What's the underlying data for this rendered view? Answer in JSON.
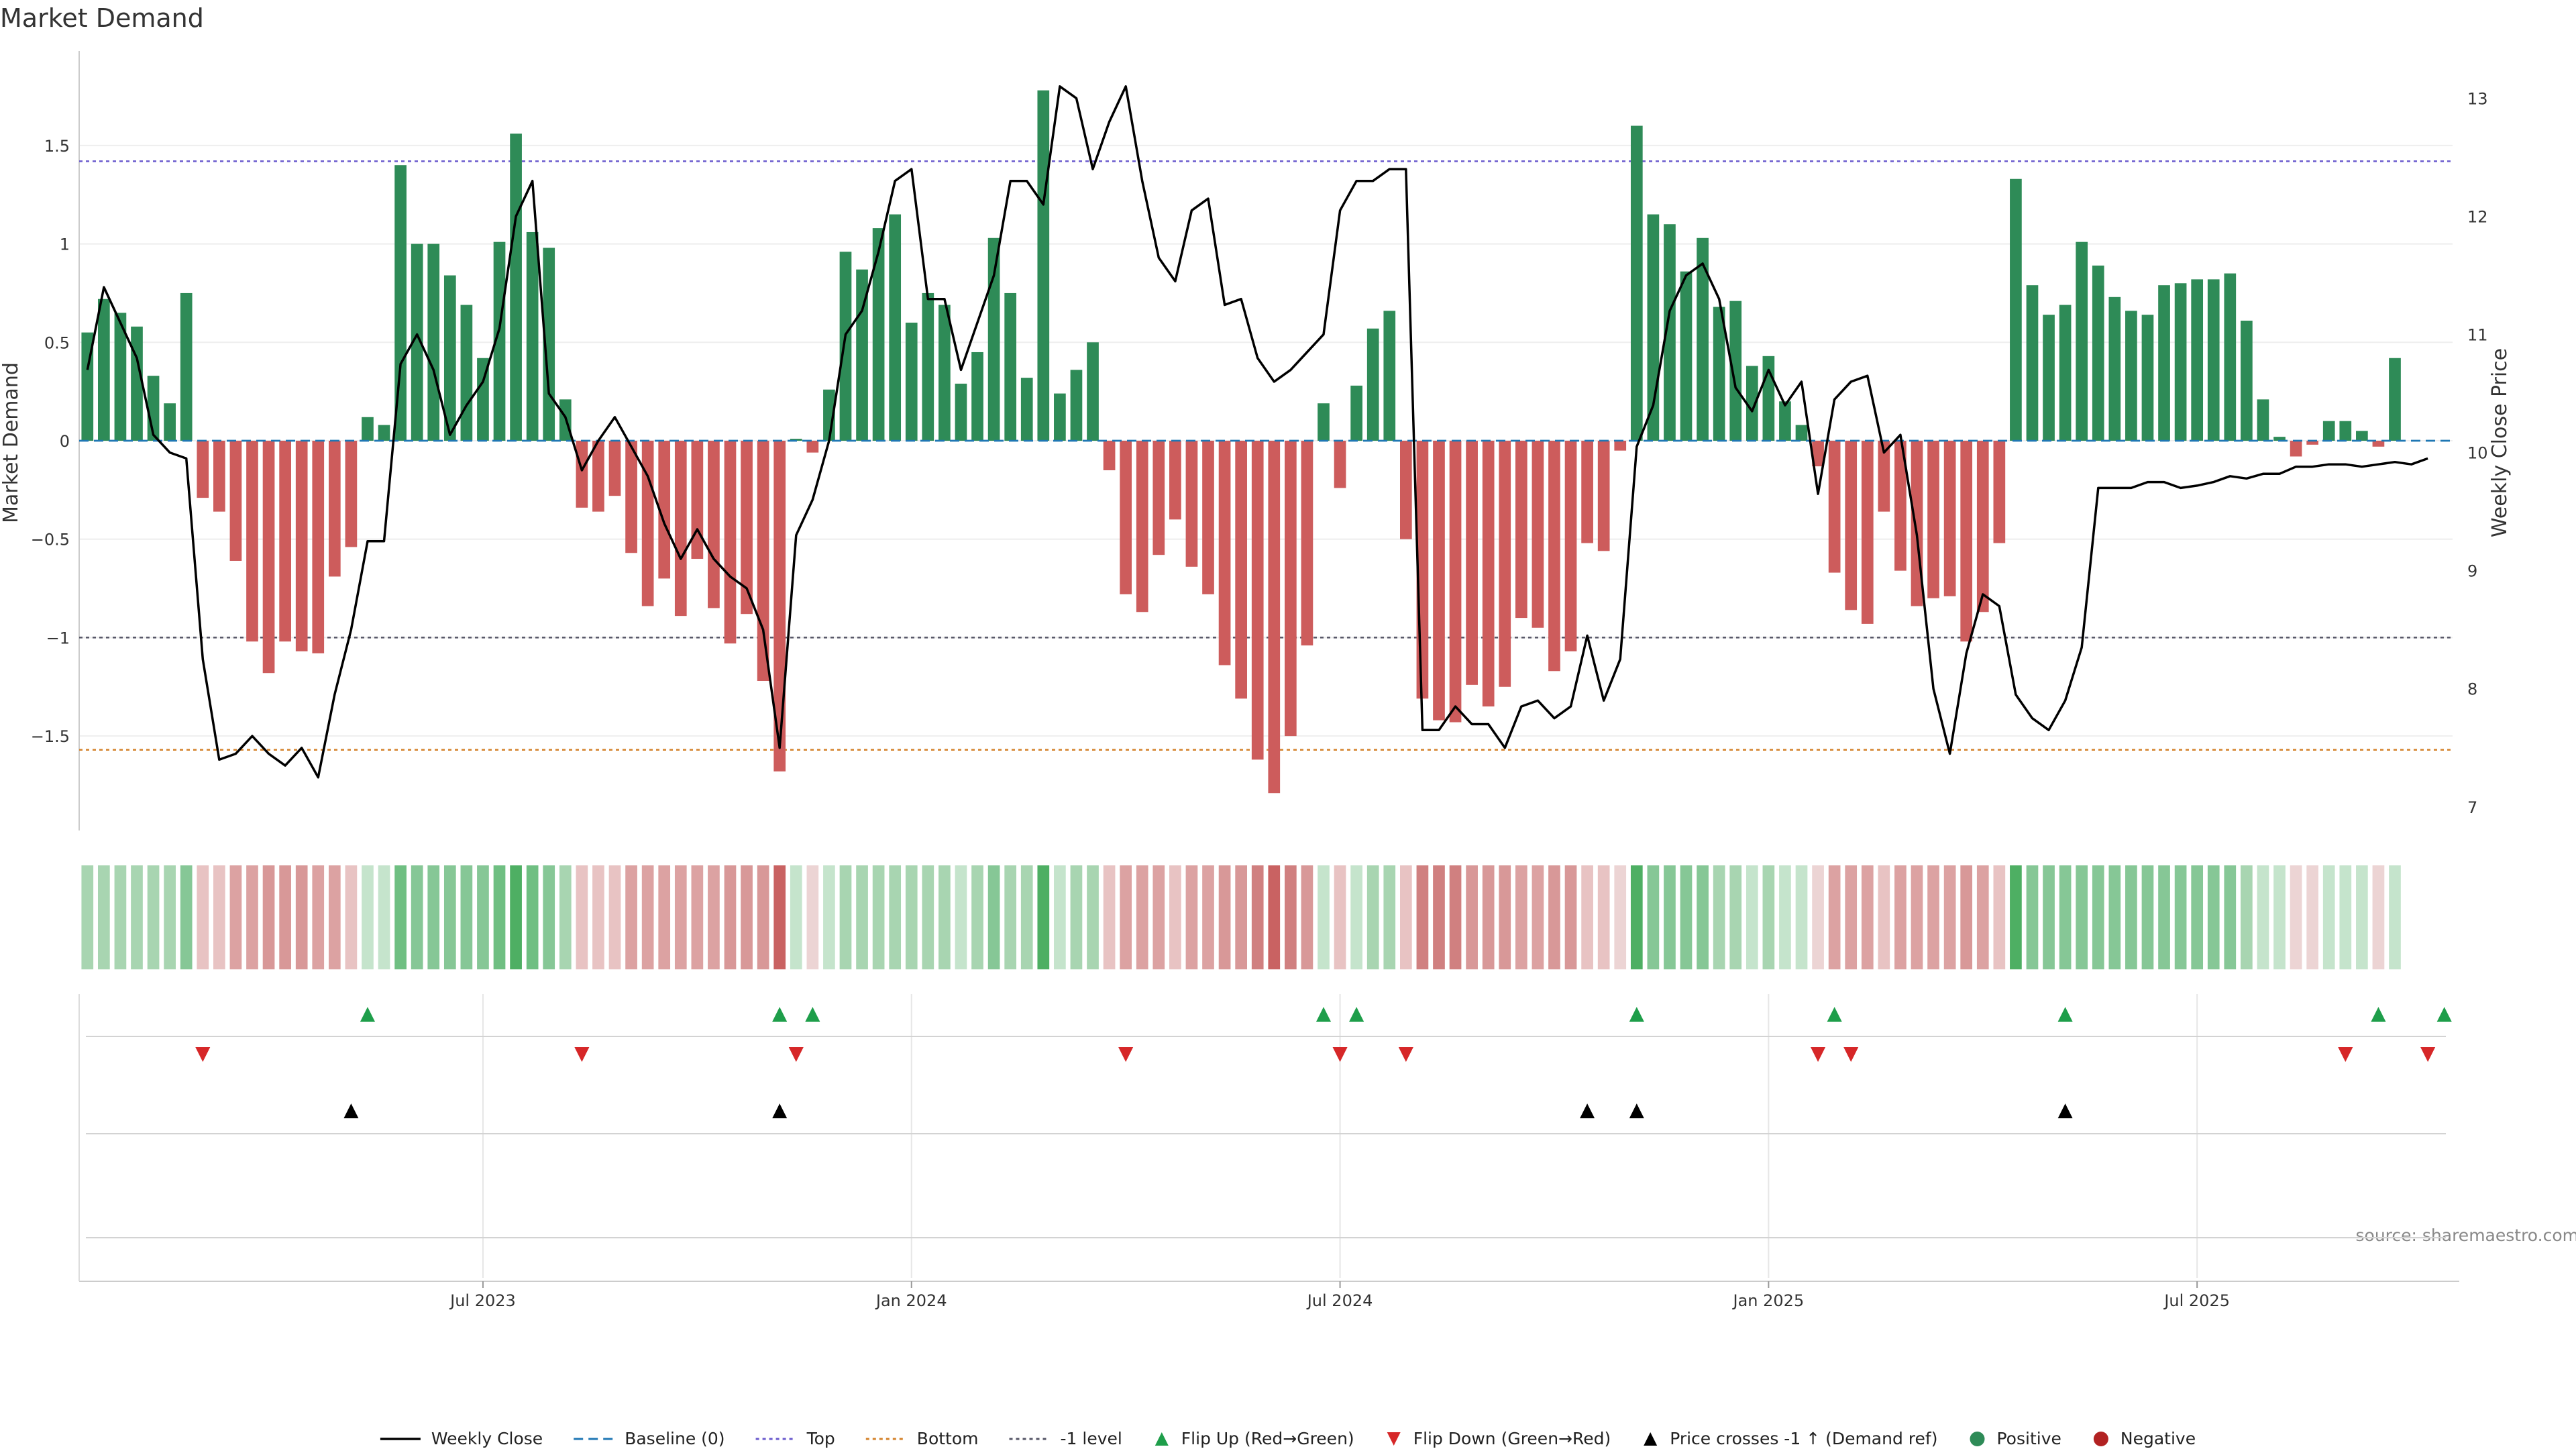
{
  "chart_data": {
    "type": "bar",
    "title": "Market Demand",
    "ylabel": "Market Demand",
    "y2label": "Weekly Close Price",
    "source": "source: sharemaestro.com",
    "ylim": [
      -1.98,
      1.98
    ],
    "y2lim": [
      6.8,
      13.4
    ],
    "yticks": [
      -1.5,
      -1,
      -0.5,
      0,
      0.5,
      1,
      1.5
    ],
    "y2ticks": [
      7,
      8,
      9,
      10,
      11,
      12,
      13
    ],
    "xticks": [
      {
        "label": "Jul 2023",
        "week": 24
      },
      {
        "label": "Jan 2024",
        "week": 50
      },
      {
        "label": "Jul 2024",
        "week": 76
      },
      {
        "label": "Jan 2025",
        "week": 102
      },
      {
        "label": "Jul 2025",
        "week": 128
      }
    ],
    "week_range": [
      0,
      143
    ],
    "levels": [
      {
        "name": "Baseline (0)",
        "value": 0,
        "color": "#1f77b4"
      },
      {
        "name": "Top",
        "value": 1.42,
        "color": "#6a5acd"
      },
      {
        "name": "Bottom",
        "value": -1.57,
        "color": "#d4822a"
      },
      {
        "name": "-1 level",
        "value": -1.0,
        "color": "#555566"
      }
    ],
    "series": [
      {
        "name": "Market Demand",
        "values": [
          0.55,
          0.72,
          0.65,
          0.58,
          0.33,
          0.19,
          0.75,
          -0.29,
          -0.36,
          -0.61,
          -1.02,
          -1.18,
          -1.02,
          -1.07,
          -1.08,
          -0.69,
          -0.54,
          0.12,
          0.08,
          1.4,
          1.0,
          1.0,
          0.84,
          0.69,
          0.42,
          1.01,
          1.56,
          1.06,
          0.98,
          0.21,
          -0.34,
          -0.36,
          -0.28,
          -0.57,
          -0.84,
          -0.7,
          -0.89,
          -0.6,
          -0.85,
          -1.03,
          -0.88,
          -1.22,
          -1.68,
          0.01,
          -0.06,
          0.26,
          0.96,
          0.87,
          1.08,
          1.15,
          0.6,
          0.75,
          0.69,
          0.29,
          0.45,
          1.03,
          0.75,
          0.32,
          1.78,
          0.24,
          0.36,
          0.5,
          -0.15,
          -0.78,
          -0.87,
          -0.58,
          -0.4,
          -0.64,
          -0.78,
          -1.14,
          -1.31,
          -1.62,
          -1.79,
          -1.5,
          -1.04,
          0.19,
          -0.24,
          0.28,
          0.57,
          0.66,
          -0.5,
          -1.31,
          -1.42,
          -1.43,
          -1.24,
          -1.35,
          -1.25,
          -0.9,
          -0.95,
          -1.17,
          -1.07,
          -0.52,
          -0.56,
          -0.05,
          1.6,
          1.15,
          1.1,
          0.86,
          1.03,
          0.68,
          0.71,
          0.38,
          0.43,
          0.2,
          0.08,
          -0.13,
          -0.67,
          -0.86,
          -0.93,
          -0.36,
          -0.66,
          -0.84,
          -0.8,
          -0.79,
          -1.02,
          -0.87,
          -0.52,
          1.33,
          0.79,
          0.64,
          0.69,
          1.01,
          0.89,
          0.73,
          0.66,
          0.64,
          0.79,
          0.8,
          0.82,
          0.82,
          0.85,
          0.61,
          0.21,
          0.02,
          -0.08,
          -0.02,
          0.1,
          0.1,
          0.05,
          -0.03,
          0.42
        ]
      },
      {
        "name": "Weekly Close",
        "values": [
          10.7,
          11.4,
          11.1,
          10.8,
          10.15,
          10.0,
          9.95,
          8.25,
          7.4,
          7.45,
          7.6,
          7.45,
          7.35,
          7.5,
          7.25,
          7.95,
          8.5,
          9.25,
          9.25,
          10.75,
          11.0,
          10.7,
          10.15,
          10.4,
          10.6,
          11.05,
          12.0,
          12.3,
          10.5,
          10.3,
          9.85,
          10.1,
          10.3,
          10.05,
          9.8,
          9.4,
          9.1,
          9.35,
          9.1,
          8.95,
          8.85,
          8.5,
          7.5,
          9.3,
          9.6,
          10.1,
          11.0,
          11.2,
          11.7,
          12.3,
          12.4,
          11.3,
          11.3,
          10.7,
          11.1,
          11.5,
          12.3,
          12.3,
          12.1,
          13.1,
          13.0,
          12.4,
          12.8,
          13.1,
          12.3,
          11.65,
          11.45,
          12.05,
          12.15,
          11.25,
          11.3,
          10.8,
          10.6,
          10.7,
          10.85,
          11.0,
          12.05,
          12.3,
          12.3,
          12.4,
          12.4,
          7.65,
          7.65,
          7.85,
          7.7,
          7.7,
          7.5,
          7.85,
          7.9,
          7.75,
          7.85,
          8.45,
          7.9,
          8.25,
          10.05,
          10.4,
          11.2,
          11.5,
          11.6,
          11.3,
          10.55,
          10.35,
          10.7,
          10.4,
          10.6,
          9.65,
          10.45,
          10.6,
          10.65,
          10.0,
          10.15,
          9.3,
          8.0,
          7.45,
          8.3,
          8.8,
          8.7,
          7.95,
          7.75,
          7.65,
          7.9,
          8.35,
          9.7,
          9.7,
          9.7,
          9.75,
          9.75,
          9.7,
          9.72,
          9.75,
          9.8,
          9.78,
          9.82,
          9.82,
          9.88,
          9.88,
          9.9,
          9.9,
          9.88,
          9.9,
          9.92,
          9.9,
          9.95
        ]
      }
    ],
    "strip_colors": [
      "#a8d5b1",
      "#a8d5b1",
      "#a8d5b1",
      "#a8d5b1",
      "#a8d5b1",
      "#a8d5b1",
      "#86c796",
      "#e8c3c3",
      "#e8c3c3",
      "#dca2a2",
      "#dca2a2",
      "#d89898",
      "#d89898",
      "#d89898",
      "#dca2a2",
      "#dca2a2",
      "#e8c3c3",
      "#c5e4cc",
      "#c5e4cc",
      "#6fbf82",
      "#86c796",
      "#86c796",
      "#86c796",
      "#86c796",
      "#86c796",
      "#6fbf82",
      "#4eaf63",
      "#6fbf82",
      "#86c796",
      "#a8d5b1",
      "#e8c3c3",
      "#e8c3c3",
      "#e8c3c3",
      "#dca2a2",
      "#dca2a2",
      "#dca2a2",
      "#dca2a2",
      "#dca2a2",
      "#dca2a2",
      "#d89898",
      "#d89898",
      "#d89898",
      "#c96262",
      "#c5e4cc",
      "#ecd4d4",
      "#c5e4cc",
      "#a8d5b1",
      "#a8d5b1",
      "#a8d5b1",
      "#a8d5b1",
      "#a8d5b1",
      "#a8d5b1",
      "#a8d5b1",
      "#c5e4cc",
      "#a8d5b1",
      "#86c796",
      "#a8d5b1",
      "#a8d5b1",
      "#4eaf63",
      "#c5e4cc",
      "#a8d5b1",
      "#a8d5b1",
      "#e8c3c3",
      "#dca2a2",
      "#dca2a2",
      "#dca2a2",
      "#e8c3c3",
      "#dca2a2",
      "#dca2a2",
      "#d89898",
      "#d89898",
      "#d08080",
      "#c96262",
      "#d08080",
      "#d89898",
      "#c5e4cc",
      "#e8c3c3",
      "#c5e4cc",
      "#a8d5b1",
      "#a8d5b1",
      "#e8c3c3",
      "#d08080",
      "#d08080",
      "#d08080",
      "#d89898",
      "#d89898",
      "#d89898",
      "#dca2a2",
      "#dca2a2",
      "#d89898",
      "#d89898",
      "#e8c3c3",
      "#e8c3c3",
      "#ecd4d4",
      "#4eaf63",
      "#86c796",
      "#86c796",
      "#86c796",
      "#86c796",
      "#a8d5b1",
      "#a8d5b1",
      "#c5e4cc",
      "#a8d5b1",
      "#c5e4cc",
      "#c5e4cc",
      "#ecd4d4",
      "#dca2a2",
      "#dca2a2",
      "#dca2a2",
      "#e8c3c3",
      "#dca2a2",
      "#dca2a2",
      "#dca2a2",
      "#dca2a2",
      "#d89898",
      "#dca2a2",
      "#e8c3c3",
      "#4eaf63",
      "#86c796",
      "#86c796",
      "#86c796",
      "#86c796",
      "#86c796",
      "#86c796",
      "#86c796",
      "#86c796",
      "#86c796",
      "#86c796",
      "#86c796",
      "#86c796",
      "#86c796",
      "#a8d5b1",
      "#c5e4cc",
      "#c5e4cc",
      "#ecd4d4",
      "#ecd4d4",
      "#c5e4cc",
      "#c5e4cc",
      "#c5e4cc",
      "#ecd4d4",
      "#c5e4cc"
    ],
    "flip_up_weeks": [
      17,
      42,
      44,
      75,
      77,
      94,
      106,
      120,
      139,
      143
    ],
    "flip_down_weeks": [
      7,
      30,
      43,
      63,
      76,
      80,
      105,
      107,
      137,
      142
    ],
    "price_cross_weeks": [
      16,
      42,
      91,
      94,
      120
    ],
    "legend": [
      {
        "label": "Weekly Close",
        "kind": "line",
        "color": "#000000"
      },
      {
        "label": "Baseline (0)",
        "kind": "dashed",
        "color": "#1f77b4"
      },
      {
        "label": "Top",
        "kind": "dotted",
        "color": "#6a5acd"
      },
      {
        "label": "Bottom",
        "kind": "dotted",
        "color": "#d4822a"
      },
      {
        "label": "-1 level",
        "kind": "dotted",
        "color": "#555566"
      },
      {
        "label": "Flip Up (Red→Green)",
        "kind": "tri-up",
        "color": "#1e9e4a"
      },
      {
        "label": "Flip Down (Green→Red)",
        "kind": "tri-down",
        "color": "#d62728"
      },
      {
        "label": "Price crosses -1 ↑ (Demand ref)",
        "kind": "tri-up",
        "color": "#000000"
      },
      {
        "label": "Positive",
        "kind": "dot",
        "color": "#2e8b57"
      },
      {
        "label": "Negative",
        "kind": "dot",
        "color": "#b22222"
      }
    ],
    "colors": {
      "positive": "#2e8b57",
      "negative": "#cd5c5c",
      "price": "#000000",
      "flip_up": "#1e9e4a",
      "flip_down": "#d62728",
      "cross": "#000000"
    },
    "legend_placement": "bottom-center",
    "grid": true
  }
}
